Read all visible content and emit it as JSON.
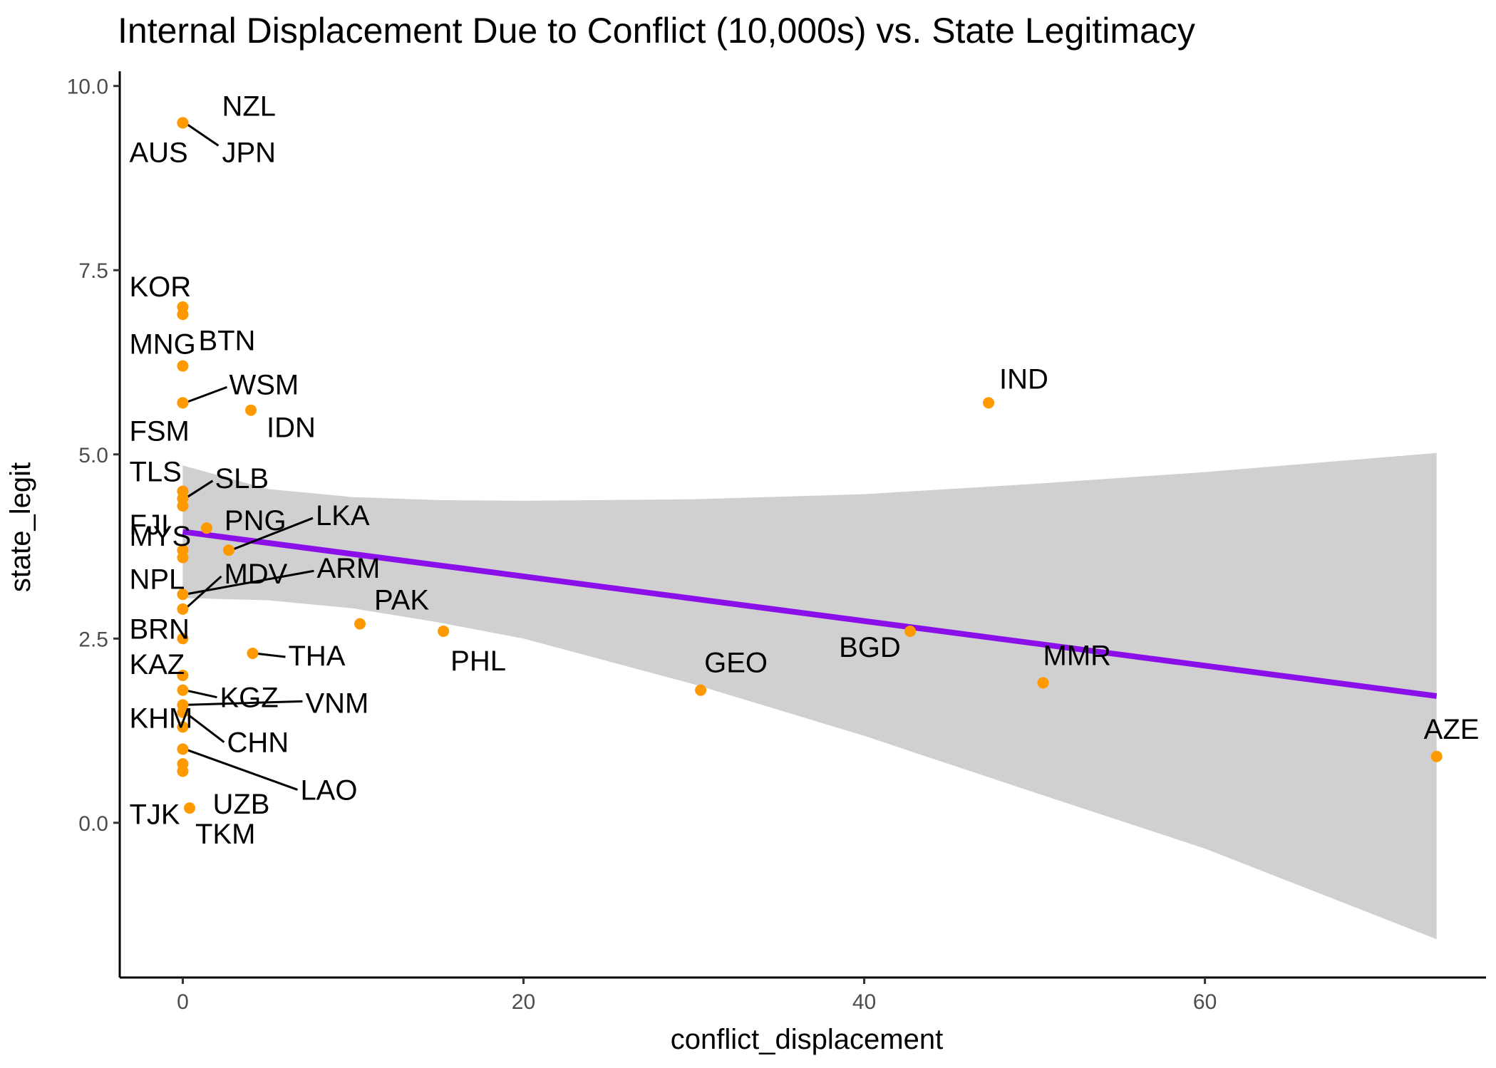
{
  "chart_data": {
    "type": "scatter",
    "title": "Internal Displacement Due to Conflict (10,000s) vs. State Legitimacy",
    "xlabel": "conflict_displacement",
    "ylabel": "state_legit",
    "xlim": [
      -3.7,
      76.5
    ],
    "ylim": [
      -2.1,
      10.2
    ],
    "x_ticks": [
      0,
      20,
      40,
      60
    ],
    "y_ticks": [
      0.0,
      2.5,
      5.0,
      7.5,
      10.0
    ],
    "y_tick_labels": [
      "0.0",
      "2.5",
      "5.0",
      "7.5",
      "10.0"
    ],
    "grid": false,
    "legend": "none",
    "colors": {
      "point": "#FF9900",
      "trend_line": "#8B0FE8",
      "confidence_band": "#BEBEBE"
    },
    "points": [
      {
        "label": "NZL",
        "x": 0,
        "y": 9.5
      },
      {
        "label": "AUS",
        "x": 0,
        "y": 9.5
      },
      {
        "label": "JPN",
        "x": 0,
        "y": 9.5
      },
      {
        "label": "KOR",
        "x": 0,
        "y": 7.0
      },
      {
        "label": "BTN",
        "x": 0,
        "y": 6.9
      },
      {
        "label": "MNG",
        "x": 0,
        "y": 6.2
      },
      {
        "label": "WSM",
        "x": 0,
        "y": 5.7
      },
      {
        "label": "FSM",
        "x": 0,
        "y": 5.7
      },
      {
        "label": "IDN",
        "x": 4.0,
        "y": 5.6
      },
      {
        "label": "IND",
        "x": 47.3,
        "y": 5.7
      },
      {
        "label": "TLS",
        "x": 0,
        "y": 4.5
      },
      {
        "label": "SLB",
        "x": 0,
        "y": 4.4
      },
      {
        "label": "FJI",
        "x": 0,
        "y": 4.3
      },
      {
        "label": "PNG",
        "x": 1.4,
        "y": 4.0
      },
      {
        "label": "LKA",
        "x": 2.7,
        "y": 3.7
      },
      {
        "label": "MYS",
        "x": 0,
        "y": 3.7
      },
      {
        "label": "NPL",
        "x": 0,
        "y": 3.6
      },
      {
        "label": "ARM",
        "x": 0,
        "y": 3.1
      },
      {
        "label": "MDV",
        "x": 0,
        "y": 2.9
      },
      {
        "label": "BRN",
        "x": 0,
        "y": 2.5
      },
      {
        "label": "PAK",
        "x": 10.4,
        "y": 2.7
      },
      {
        "label": "PHL",
        "x": 15.3,
        "y": 2.6
      },
      {
        "label": "THA",
        "x": 4.1,
        "y": 2.3
      },
      {
        "label": "KAZ",
        "x": 0,
        "y": 2.0
      },
      {
        "label": "KGZ",
        "x": 0,
        "y": 1.8
      },
      {
        "label": "VNM",
        "x": 0,
        "y": 1.6
      },
      {
        "label": "CHN",
        "x": 0,
        "y": 1.5
      },
      {
        "label": "GEO",
        "x": 30.4,
        "y": 1.8
      },
      {
        "label": "BGD",
        "x": 42.7,
        "y": 2.6
      },
      {
        "label": "MMR",
        "x": 50.5,
        "y": 1.9
      },
      {
        "label": "AZE",
        "x": 73.6,
        "y": 0.9
      },
      {
        "label": "KHM",
        "x": 0,
        "y": 1.3
      },
      {
        "label": "LAO",
        "x": 0,
        "y": 1.0
      },
      {
        "label": "UZB",
        "x": 0,
        "y": 0.8
      },
      {
        "label": "TJK",
        "x": 0,
        "y": 0.7
      },
      {
        "label": "TKM",
        "x": 0.4,
        "y": 0.2
      }
    ],
    "trend_line": {
      "x": [
        0,
        73.6
      ],
      "y": [
        3.95,
        1.72
      ]
    },
    "confidence_band": {
      "x": [
        0,
        5,
        10,
        15,
        20,
        30,
        40,
        50,
        60,
        73.6
      ],
      "upper": [
        4.85,
        4.53,
        4.42,
        4.38,
        4.37,
        4.39,
        4.46,
        4.6,
        4.76,
        5.02
      ],
      "lower": [
        3.05,
        3.02,
        2.91,
        2.72,
        2.5,
        1.88,
        1.18,
        0.41,
        -0.35,
        -1.58
      ]
    }
  }
}
